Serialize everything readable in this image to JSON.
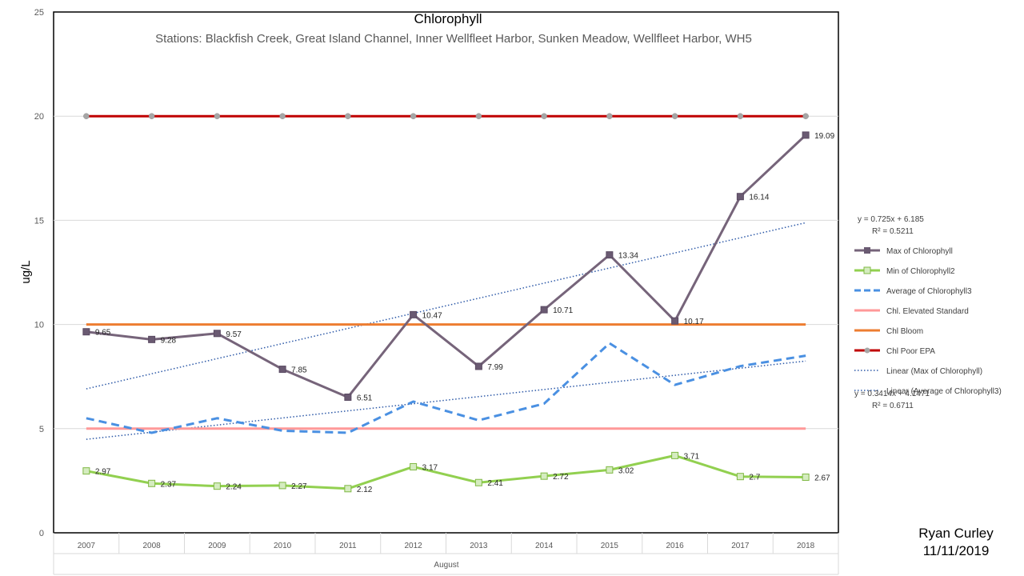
{
  "chart_data": {
    "type": "line",
    "title": "Chlorophyll",
    "subtitle": "Stations: Blackfish Creek, Great Island Channel, Inner Wellfleet Harbor, Sunken Meadow, Wellfleet Harbor, WH5",
    "ylabel": "ug/L",
    "xlabel": "August",
    "ylim": [
      0,
      25
    ],
    "yticks": [
      0,
      5,
      10,
      15,
      20,
      25
    ],
    "categories": [
      "2007",
      "2008",
      "2009",
      "2010",
      "2011",
      "2012",
      "2013",
      "2014",
      "2015",
      "2016",
      "2017",
      "2018"
    ],
    "grid": true,
    "legend_position": "right",
    "series": [
      {
        "name": "Max of Chlorophyll",
        "color": "#76647a",
        "style": "solid-square-markers",
        "values": [
          9.65,
          9.28,
          9.57,
          7.85,
          6.51,
          10.47,
          7.99,
          10.71,
          13.34,
          10.17,
          16.14,
          19.09
        ],
        "data_labels": [
          "9.65",
          "9.28",
          "9.57",
          "7.85",
          "6.51",
          "10.47",
          "7.99",
          "10.71",
          "13.34",
          "10.17",
          "16.14",
          "19.09"
        ]
      },
      {
        "name": "Min of Chlorophyll2",
        "color": "#92d050",
        "style": "solid-square-markers-hollow",
        "values": [
          2.97,
          2.37,
          2.24,
          2.27,
          2.12,
          3.17,
          2.41,
          2.72,
          3.02,
          3.71,
          2.7,
          2.67
        ],
        "data_labels": [
          "2.97",
          "2.37",
          "2.24",
          "2.27",
          "2.12",
          "3.17",
          "2.41",
          "2.72",
          "3.02",
          "3.71",
          "2.7",
          "2.67"
        ]
      },
      {
        "name": "Average of Chlorophyll3",
        "color": "#4a90e2",
        "style": "dashed",
        "values": [
          5.5,
          4.8,
          5.5,
          4.9,
          4.8,
          6.3,
          5.4,
          6.2,
          9.1,
          7.1,
          8.0,
          8.5
        ]
      },
      {
        "name": "Chl. Elevated Standard",
        "color": "#ff9999",
        "style": "solid",
        "values": [
          5,
          5,
          5,
          5,
          5,
          5,
          5,
          5,
          5,
          5,
          5,
          5
        ]
      },
      {
        "name": "Chl Bloom",
        "color": "#ed7d31",
        "style": "solid",
        "values": [
          10,
          10,
          10,
          10,
          10,
          10,
          10,
          10,
          10,
          10,
          10,
          10
        ]
      },
      {
        "name": "Chl Poor EPA",
        "color": "#c00000",
        "style": "solid-circle-markers",
        "values": [
          20,
          20,
          20,
          20,
          20,
          20,
          20,
          20,
          20,
          20,
          20,
          20
        ]
      }
    ],
    "trendlines": [
      {
        "name": "Linear (Max of Chlorophyll)",
        "color": "#2e5aa8",
        "style": "dotted",
        "slope": 0.725,
        "intercept": 6.185,
        "equation": "y = 0.725x + 6.185",
        "r2": "R² = 0.5211"
      },
      {
        "name": "Linear (Average of Chlorophyll3)",
        "color": "#2e5aa8",
        "style": "dotted",
        "slope": 0.3414,
        "intercept": 4.1471,
        "equation": "y = 0.3414x + 4.1471",
        "r2": "R² = 0.6711"
      }
    ]
  },
  "signature": {
    "name": "Ryan Curley",
    "date": "11/11/2019"
  }
}
